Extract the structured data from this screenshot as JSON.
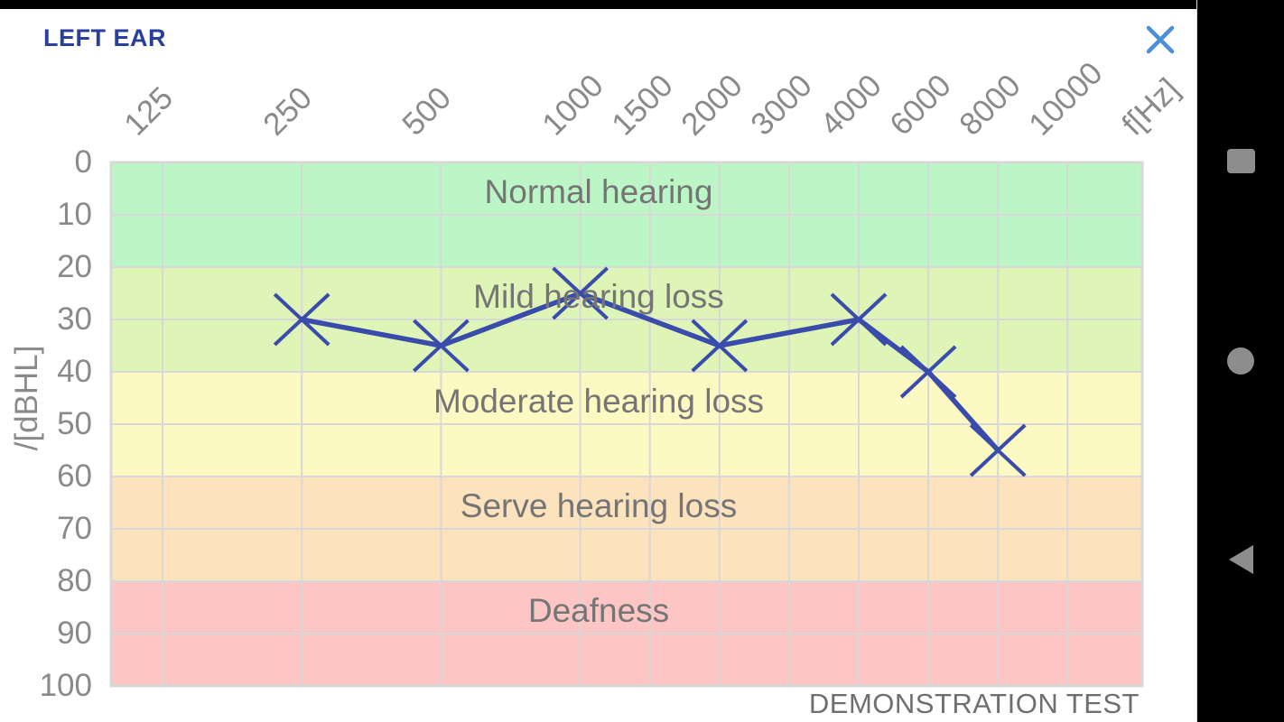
{
  "header": {
    "title": "LEFT EAR"
  },
  "icons": {
    "close": "close-icon (light blue X)",
    "recents": "recents-square-icon",
    "home": "home-circle-icon",
    "back": "back-triangle-icon"
  },
  "colors": {
    "title_blue": "#2a3f9c",
    "close_blue": "#4a8fd8",
    "series_line": "#3a4cab",
    "grid": "#d8d8d8",
    "tick_text": "#8a8a8a",
    "band_text": "#757575",
    "nav_icon": "#8d8d8d",
    "status_bar": "#000000"
  },
  "chart_data": {
    "type": "line",
    "title": "",
    "footer": "DEMONSTRATION TEST",
    "grid": true,
    "x_axis": {
      "label": "f[Hz]",
      "scale": "octave-log below 1000 Hz, stepped above",
      "ticks": [
        125,
        250,
        500,
        1000,
        1500,
        2000,
        3000,
        4000,
        6000,
        8000,
        10000
      ]
    },
    "y_axis": {
      "label": "/[dBHL]",
      "ticks": [
        0,
        10,
        20,
        30,
        40,
        50,
        60,
        70,
        80,
        90,
        100
      ],
      "range": [
        0,
        100
      ],
      "inverted": true
    },
    "bands": [
      {
        "label": "Normal hearing",
        "from": 0,
        "to": 20,
        "color": "#bdf6c6"
      },
      {
        "label": "Mild hearing loss",
        "from": 20,
        "to": 40,
        "color": "#def5b7"
      },
      {
        "label": "Moderate hearing loss",
        "from": 40,
        "to": 60,
        "color": "#fdf9c3"
      },
      {
        "label": "Serve hearing loss",
        "from": 60,
        "to": 80,
        "color": "#fce2bd"
      },
      {
        "label": "Deafness",
        "from": 80,
        "to": 100,
        "color": "#fec5c5"
      }
    ],
    "series": [
      {
        "name": "left ear threshold",
        "marker": "x",
        "color": "#3a4cab",
        "points": [
          {
            "f": 250,
            "db": 30
          },
          {
            "f": 500,
            "db": 35
          },
          {
            "f": 1000,
            "db": 25
          },
          {
            "f": 2000,
            "db": 35
          },
          {
            "f": 4000,
            "db": 30
          },
          {
            "f": 6000,
            "db": 40
          },
          {
            "f": 8000,
            "db": 55
          }
        ]
      }
    ]
  }
}
